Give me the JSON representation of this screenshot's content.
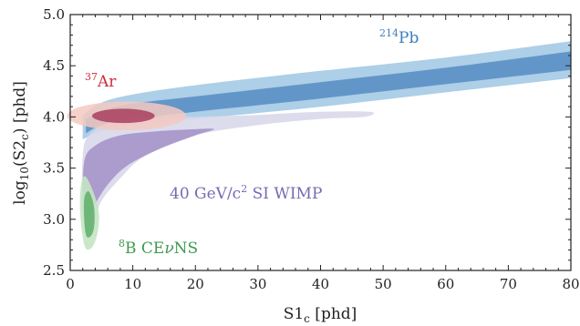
{
  "chart_data": {
    "type": "area",
    "title": "",
    "xlabel": {
      "main": "S1",
      "sub": "c",
      "unit": " [phd]"
    },
    "ylabel": {
      "pre": "log",
      "presub": "10",
      "open": "(S2",
      "sub": "c",
      "unit": ") [phd]"
    },
    "xlim": [
      0,
      80
    ],
    "ylim": [
      2.5,
      5.0
    ],
    "xticks": [
      0,
      10,
      20,
      30,
      40,
      50,
      60,
      70,
      80
    ],
    "yticks": [
      2.5,
      3.0,
      3.5,
      4.0,
      4.5,
      5.0
    ],
    "xtick_labels": [
      "0",
      "10",
      "20",
      "30",
      "40",
      "50",
      "60",
      "70",
      "80"
    ],
    "ytick_labels": [
      "2.5",
      "3.0",
      "3.5",
      "4.0",
      "4.5",
      "5.0"
    ],
    "grid": false,
    "legend": "none",
    "regions": [
      {
        "name": "214Pb",
        "color_outer": "#a9cce6",
        "color_inner": "#5b8fc4",
        "outer": {
          "upper": [
            [
              2,
              4.02
            ],
            [
              5,
              4.14
            ],
            [
              10,
              4.22
            ],
            [
              20,
              4.31
            ],
            [
              40,
              4.45
            ],
            [
              60,
              4.58
            ],
            [
              80,
              4.74
            ]
          ],
          "lower": [
            [
              2,
              3.78
            ],
            [
              5,
              3.86
            ],
            [
              10,
              3.92
            ],
            [
              20,
              3.98
            ],
            [
              40,
              4.1
            ],
            [
              60,
              4.24
            ],
            [
              80,
              4.38
            ]
          ]
        },
        "inner": {
          "upper": [
            [
              2.5,
              3.98
            ],
            [
              5,
              4.06
            ],
            [
              10,
              4.13
            ],
            [
              20,
              4.2
            ],
            [
              40,
              4.34
            ],
            [
              60,
              4.48
            ],
            [
              80,
              4.64
            ]
          ],
          "lower": [
            [
              2.5,
              3.84
            ],
            [
              5,
              3.92
            ],
            [
              10,
              3.98
            ],
            [
              20,
              4.05
            ],
            [
              40,
              4.18
            ],
            [
              60,
              4.32
            ],
            [
              80,
              4.46
            ]
          ]
        }
      },
      {
        "name": "40 GeV/c2 SI WIMP outer",
        "color": "#d8d8eb",
        "polygon": [
          [
            2,
            3.0
          ],
          [
            2,
            3.62
          ],
          [
            3,
            3.82
          ],
          [
            6,
            3.94
          ],
          [
            10,
            3.98
          ],
          [
            20,
            4.0
          ],
          [
            30,
            4.02
          ],
          [
            40,
            4.05
          ],
          [
            48,
            4.05
          ],
          [
            47,
            4.0
          ],
          [
            40,
            3.98
          ],
          [
            30,
            3.92
          ],
          [
            20,
            3.82
          ],
          [
            12,
            3.62
          ],
          [
            8,
            3.4
          ],
          [
            5,
            3.18
          ],
          [
            3.5,
            2.95
          ]
        ]
      },
      {
        "name": "40 GeV/c2 SI WIMP inner",
        "color": "#a38fc7",
        "polygon": [
          [
            2.2,
            3.05
          ],
          [
            2.2,
            3.55
          ],
          [
            4,
            3.72
          ],
          [
            8,
            3.82
          ],
          [
            14,
            3.86
          ],
          [
            20,
            3.88
          ],
          [
            23,
            3.88
          ],
          [
            20,
            3.82
          ],
          [
            14,
            3.68
          ],
          [
            9,
            3.52
          ],
          [
            6,
            3.34
          ],
          [
            4,
            3.15
          ],
          [
            3,
            3.02
          ]
        ]
      },
      {
        "name": "37Ar outer",
        "color": "#f3c9c1",
        "ellipse": {
          "cx": 9.0,
          "cy": 4.01,
          "rx": 9.5,
          "ry": 0.14
        }
      },
      {
        "name": "37Ar inner",
        "color": "#a9405e",
        "ellipse": {
          "cx": 8.5,
          "cy": 4.01,
          "rx": 5.0,
          "ry": 0.07
        }
      },
      {
        "name": "8B CEvNS outer",
        "color": "#c4e4c4",
        "polygon": [
          [
            1.6,
            3.05
          ],
          [
            1.7,
            3.32
          ],
          [
            2.4,
            3.42
          ],
          [
            3.8,
            3.25
          ],
          [
            4.6,
            3.05
          ],
          [
            4.3,
            2.85
          ],
          [
            3.4,
            2.72
          ],
          [
            2.3,
            2.74
          ]
        ]
      },
      {
        "name": "8B CEvNS inner",
        "color": "#5fae6a",
        "polygon": [
          [
            2.2,
            3.05
          ],
          [
            2.3,
            3.22
          ],
          [
            3.0,
            3.27
          ],
          [
            3.8,
            3.12
          ],
          [
            3.8,
            2.92
          ],
          [
            3.2,
            2.83
          ],
          [
            2.5,
            2.85
          ]
        ]
      }
    ]
  },
  "annotations": {
    "pb": {
      "sup": "214",
      "text": "Pb",
      "color": "#3a7ebd"
    },
    "ar": {
      "sup": "37",
      "text": "Ar",
      "color": "#cc2e3c"
    },
    "wimp": {
      "text1": "40 GeV/c",
      "sup": "2",
      "text2": " SI WIMP",
      "color": "#7a68b3"
    },
    "cevns": {
      "sup": "8",
      "text1": "B CE",
      "nu": "ν",
      "text2": "NS",
      "color": "#3e9a4e"
    }
  }
}
